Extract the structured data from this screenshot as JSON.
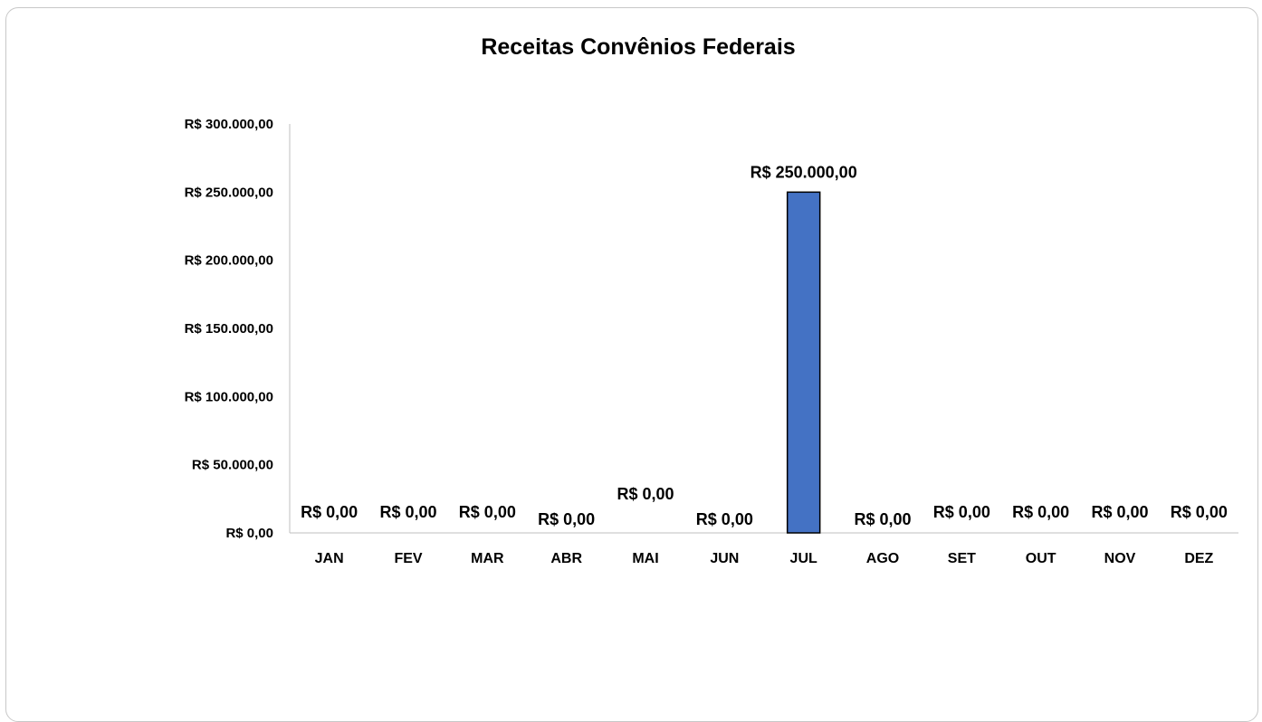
{
  "chart_data": {
    "type": "bar",
    "title": "Receitas Convênios Federais",
    "xlabel": "",
    "ylabel": "",
    "ylim": [
      0,
      300000
    ],
    "y_ticks": [
      {
        "value": 0,
        "label": "R$ 0,00"
      },
      {
        "value": 50000,
        "label": "R$ 50.000,00"
      },
      {
        "value": 100000,
        "label": "R$ 100.000,00"
      },
      {
        "value": 150000,
        "label": "R$ 150.000,00"
      },
      {
        "value": 200000,
        "label": "R$ 200.000,00"
      },
      {
        "value": 250000,
        "label": "R$ 250.000,00"
      },
      {
        "value": 300000,
        "label": "R$ 300.000,00"
      }
    ],
    "categories": [
      "JAN",
      "FEV",
      "MAR",
      "ABR",
      "MAI",
      "JUN",
      "JUL",
      "AGO",
      "SET",
      "OUT",
      "NOV",
      "DEZ"
    ],
    "values": [
      0,
      0,
      0,
      0,
      0,
      0,
      250000,
      0,
      0,
      0,
      0,
      0
    ],
    "data_labels": [
      "R$ 0,00",
      "R$ 0,00",
      "R$ 0,00",
      "R$ 0,00",
      "R$ 0,00",
      "R$ 0,00",
      "R$ 250.000,00",
      "R$ 0,00",
      "R$ 0,00",
      "R$ 0,00",
      "R$ 0,00",
      "R$ 0,00"
    ],
    "bar_color": "#4472C4",
    "bar_border_color": "#000000",
    "grid": false,
    "legend": "none"
  }
}
